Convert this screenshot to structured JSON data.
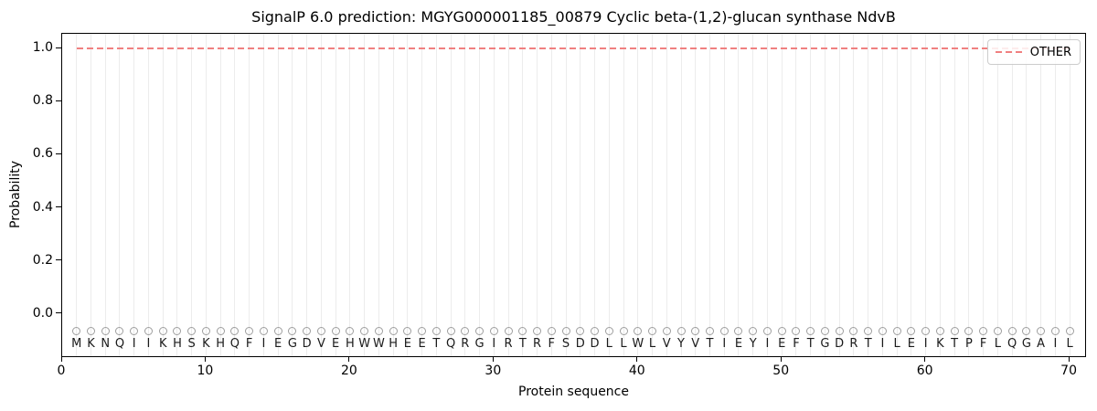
{
  "figure": {
    "title": "SignalP 6.0 prediction: MGYG000001185_00879 Cyclic beta-(1,2)-glucan synthase NdvB",
    "xlabel": "Protein sequence",
    "ylabel": "Probability"
  },
  "legend": {
    "label": "OTHER",
    "position": "upper right"
  },
  "colors": {
    "other_line": "#f08080",
    "grid": "#ececec",
    "marker_edge": "#9e9e9e",
    "letter": "#1a1a1a",
    "spine": "#000000",
    "legend_border": "#cccccc"
  },
  "chart_data": {
    "type": "line",
    "title": "SignalP 6.0 prediction: MGYG000001185_00879 Cyclic beta-(1,2)-glucan synthase NdvB",
    "xlabel": "Protein sequence",
    "ylabel": "Probability",
    "xlim": [
      0,
      71.2
    ],
    "ylim": [
      -0.165,
      1.055
    ],
    "x_ticks": [
      0,
      10,
      20,
      30,
      40,
      50,
      60,
      70
    ],
    "y_ticks": [
      0.0,
      0.2,
      0.4,
      0.6,
      0.8,
      1.0
    ],
    "grid": "vertical gridline at every residue position 1-70",
    "legend_position": "upper right",
    "n_residues": 70,
    "sequence": "MKNQIIKHSKHQFIEGDVEHWWHEETQRGIRTRFSDDLLWLVYVTIEYIEFTGDRTILEIKTPFLQGAIL",
    "series": [
      {
        "name": "OTHER",
        "color": "#f08080",
        "linestyle": "dashed",
        "x": [
          1,
          2,
          3,
          4,
          5,
          6,
          7,
          8,
          9,
          10,
          11,
          12,
          13,
          14,
          15,
          16,
          17,
          18,
          19,
          20,
          21,
          22,
          23,
          24,
          25,
          26,
          27,
          28,
          29,
          30,
          31,
          32,
          33,
          34,
          35,
          36,
          37,
          38,
          39,
          40,
          41,
          42,
          43,
          44,
          45,
          46,
          47,
          48,
          49,
          50,
          51,
          52,
          53,
          54,
          55,
          56,
          57,
          58,
          59,
          60,
          61,
          62,
          63,
          64,
          65,
          66,
          67,
          68,
          69,
          70
        ],
        "values": [
          1.0,
          1.0,
          1.0,
          1.0,
          1.0,
          1.0,
          1.0,
          1.0,
          1.0,
          1.0,
          1.0,
          1.0,
          1.0,
          1.0,
          1.0,
          1.0,
          1.0,
          1.0,
          1.0,
          1.0,
          1.0,
          1.0,
          1.0,
          1.0,
          1.0,
          1.0,
          1.0,
          1.0,
          1.0,
          1.0,
          1.0,
          1.0,
          1.0,
          1.0,
          1.0,
          1.0,
          1.0,
          1.0,
          1.0,
          1.0,
          1.0,
          1.0,
          1.0,
          1.0,
          1.0,
          1.0,
          1.0,
          1.0,
          1.0,
          1.0,
          1.0,
          1.0,
          1.0,
          1.0,
          1.0,
          1.0,
          1.0,
          1.0,
          1.0,
          1.0,
          1.0,
          1.0,
          1.0,
          1.0,
          1.0,
          1.0,
          1.0,
          1.0,
          1.0,
          1.0
        ]
      }
    ],
    "residue_markers": {
      "symbol": "open-circle",
      "y": -0.065
    },
    "letters_y": -0.113
  }
}
